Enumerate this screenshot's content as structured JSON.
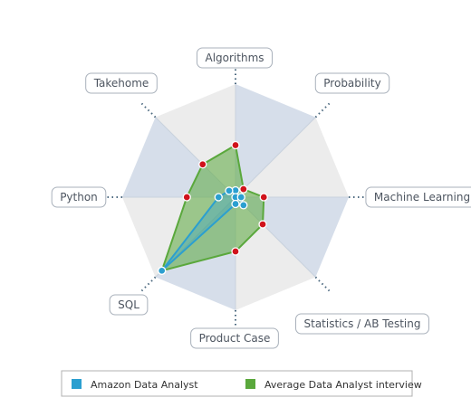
{
  "chart_data": {
    "type": "radar",
    "axes": [
      "Algorithms",
      "Probability",
      "Machine Learning",
      "Statistics / AB Testing",
      "Product Case",
      "SQL",
      "Python",
      "Takehome"
    ],
    "rmax": 10,
    "series": [
      {
        "name": "Amazon Data Analyst",
        "color": "#2b9fd0",
        "values": [
          0.6,
          0,
          0.5,
          1.0,
          0.6,
          9.2,
          1.5,
          0.8
        ]
      },
      {
        "name": "Average Data Analyst interview",
        "color": "#5aa83c",
        "values": [
          4.6,
          1.0,
          2.5,
          3.4,
          4.8,
          9.2,
          4.3,
          4.1
        ]
      }
    ],
    "ring_colors": [
      "#d6deea",
      "#ececec"
    ],
    "legend": "bottom",
    "grid": true
  }
}
